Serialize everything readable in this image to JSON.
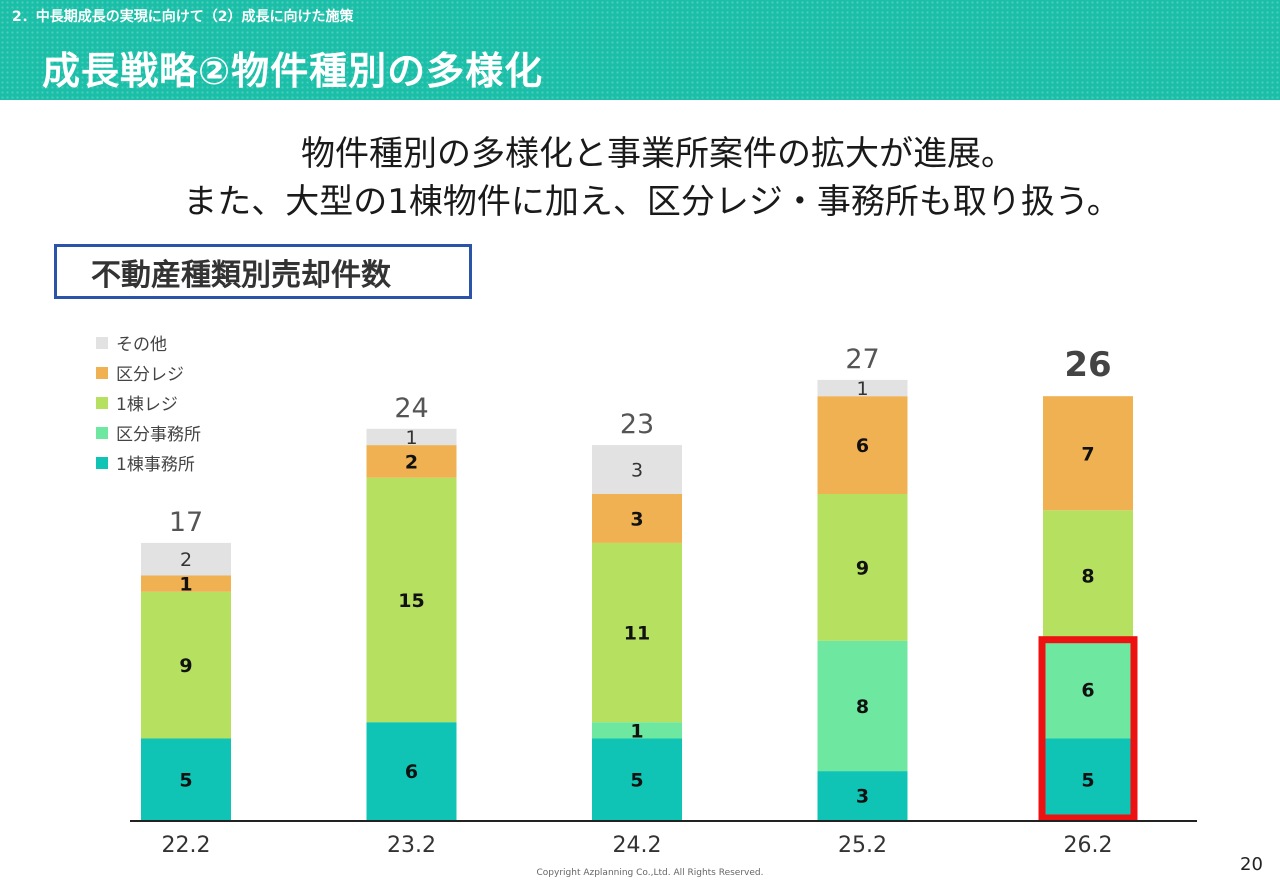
{
  "header": {
    "section": "2．中長期成長の実現に向けて（2）成長に向けた施策",
    "title": "成長戦略②物件種別の多様化"
  },
  "lead": {
    "line1": "物件種別の多様化と事業所案件の拡大が進展。",
    "line2": "また、大型の1棟物件に加え、区分レジ・事務所も取り扱う。"
  },
  "chart_data": {
    "type": "bar",
    "stacked": true,
    "title": "不動産種類別売却件数",
    "categories": [
      "22.2",
      "23.2",
      "24.2",
      "25.2",
      "26.2"
    ],
    "series": [
      {
        "name": "1棟事務所",
        "color": "#0fc4b5",
        "values": [
          5,
          6,
          5,
          3,
          5
        ]
      },
      {
        "name": "区分事務所",
        "color": "#6ee8a0",
        "values": [
          0,
          0,
          1,
          8,
          6
        ]
      },
      {
        "name": "1棟レジ",
        "color": "#b5e060",
        "values": [
          9,
          15,
          11,
          9,
          8
        ]
      },
      {
        "name": "区分レジ",
        "color": "#efb151",
        "values": [
          1,
          2,
          3,
          6,
          7
        ]
      },
      {
        "name": "その他",
        "color": "#e2e2e2",
        "values": [
          2,
          1,
          3,
          1,
          0
        ]
      }
    ],
    "totals": [
      "17",
      "24",
      "23",
      "27",
      "26"
    ],
    "highlight": {
      "category_index": 4,
      "series": [
        "1棟事務所",
        "区分事務所"
      ],
      "color": "#ee1111"
    },
    "legend_order": [
      "その他",
      "区分レジ",
      "1棟レジ",
      "区分事務所",
      "1棟事務所"
    ],
    "ylim": [
      0,
      27
    ]
  },
  "footer": {
    "copyright": "Copyright Azplanning Co.,Ltd. All Rights Reserved.",
    "page": "20"
  }
}
